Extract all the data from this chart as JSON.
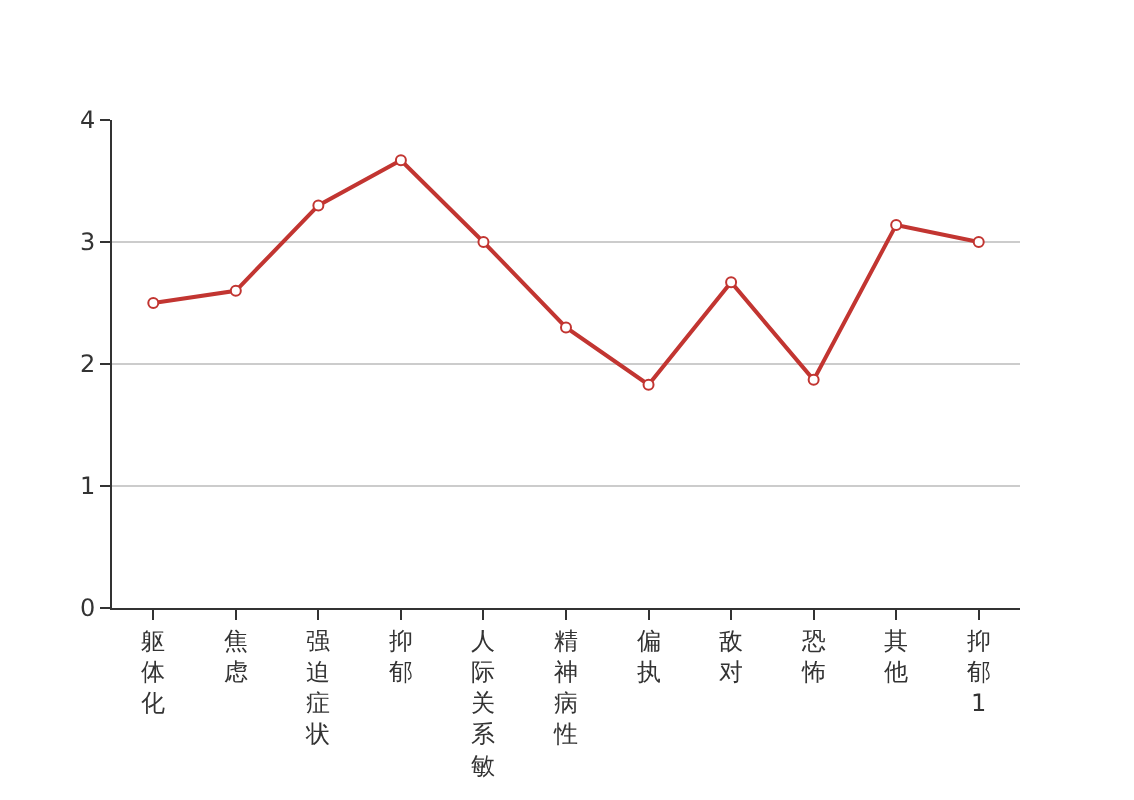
{
  "chart_data": {
    "type": "line",
    "categories": [
      "躯体化",
      "焦虑",
      "强迫症状",
      "抑郁",
      "人际关系敏",
      "精神病性",
      "偏执",
      "敌对",
      "恐怖",
      "其他",
      "抑郁1"
    ],
    "series": [
      {
        "color": "#c23531",
        "values": [
          2.5,
          2.6,
          3.3,
          3.67,
          3.0,
          2.3,
          1.83,
          2.67,
          1.87,
          3.14,
          3.0
        ]
      }
    ],
    "ylim": [
      0,
      4
    ],
    "yticks": [
      0,
      1,
      2,
      3,
      4
    ],
    "grid": "y",
    "marker": "circle",
    "line_style": "solid"
  }
}
